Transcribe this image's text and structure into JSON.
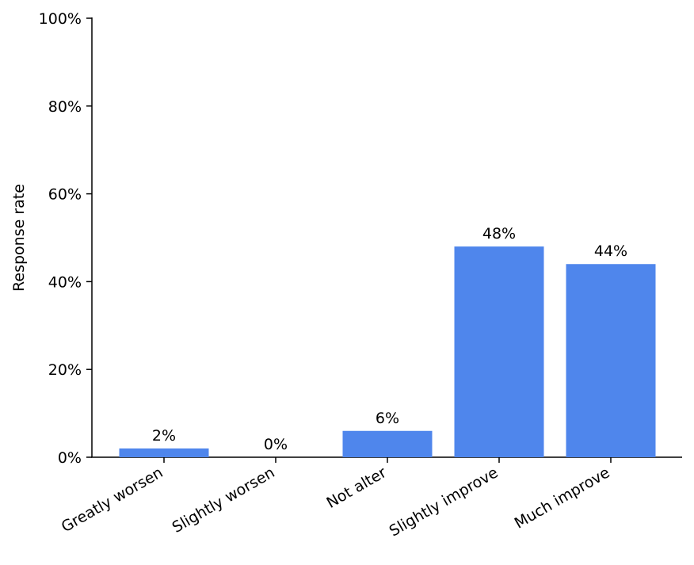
{
  "chart_data": {
    "type": "bar",
    "y_label": "Response rate",
    "categories": [
      "Greatly worsen",
      "Slightly worsen",
      "Not alter",
      "Slightly improve",
      "Much improve"
    ],
    "values": [
      2,
      0,
      6,
      48,
      44
    ],
    "value_labels": [
      "2%",
      "0%",
      "6%",
      "48%",
      "44%"
    ],
    "color": "#4f86ec",
    "ylim": [
      0,
      100
    ],
    "yticks": [
      {
        "value": 0,
        "label": "0%"
      },
      {
        "value": 20,
        "label": "20%"
      },
      {
        "value": 40,
        "label": "40%"
      },
      {
        "value": 60,
        "label": "60%"
      },
      {
        "value": 80,
        "label": "80%"
      },
      {
        "value": 100,
        "label": "100%"
      }
    ]
  }
}
